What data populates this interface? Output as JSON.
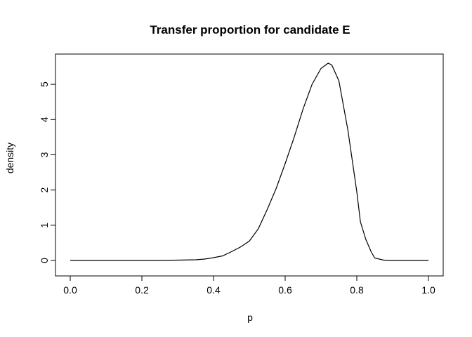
{
  "chart_data": {
    "type": "line",
    "title": "Transfer proportion for candidate E",
    "xlabel": "p",
    "ylabel": "density",
    "xlim": [
      0.0,
      1.0
    ],
    "ylim": [
      0,
      5.6
    ],
    "x_ticks": [
      0.0,
      0.2,
      0.4,
      0.6,
      0.8,
      1.0
    ],
    "x_tick_labels": [
      "0.0",
      "0.2",
      "0.4",
      "0.6",
      "0.8",
      "1.0"
    ],
    "y_ticks": [
      0,
      1,
      2,
      3,
      4,
      5
    ],
    "y_tick_labels": [
      "0",
      "1",
      "2",
      "3",
      "4",
      "5"
    ],
    "grid": false,
    "legend": "none",
    "line_color": "#000000",
    "series": [
      {
        "x": [
          0.0,
          0.05,
          0.1,
          0.15,
          0.2,
          0.25,
          0.3,
          0.35,
          0.375,
          0.4,
          0.425,
          0.45,
          0.475,
          0.5,
          0.525,
          0.55,
          0.575,
          0.6,
          0.625,
          0.65,
          0.675,
          0.7,
          0.72,
          0.73,
          0.75,
          0.775,
          0.8,
          0.81,
          0.825,
          0.84,
          0.85,
          0.875,
          0.9,
          0.95,
          1.0
        ],
        "y": [
          0,
          0,
          0,
          0,
          0,
          0,
          0.01,
          0.02,
          0.04,
          0.08,
          0.13,
          0.25,
          0.38,
          0.55,
          0.9,
          1.45,
          2.05,
          2.75,
          3.5,
          4.3,
          5.0,
          5.45,
          5.6,
          5.55,
          5.1,
          3.7,
          1.95,
          1.1,
          0.6,
          0.25,
          0.07,
          0.01,
          0,
          0,
          0
        ]
      }
    ]
  }
}
